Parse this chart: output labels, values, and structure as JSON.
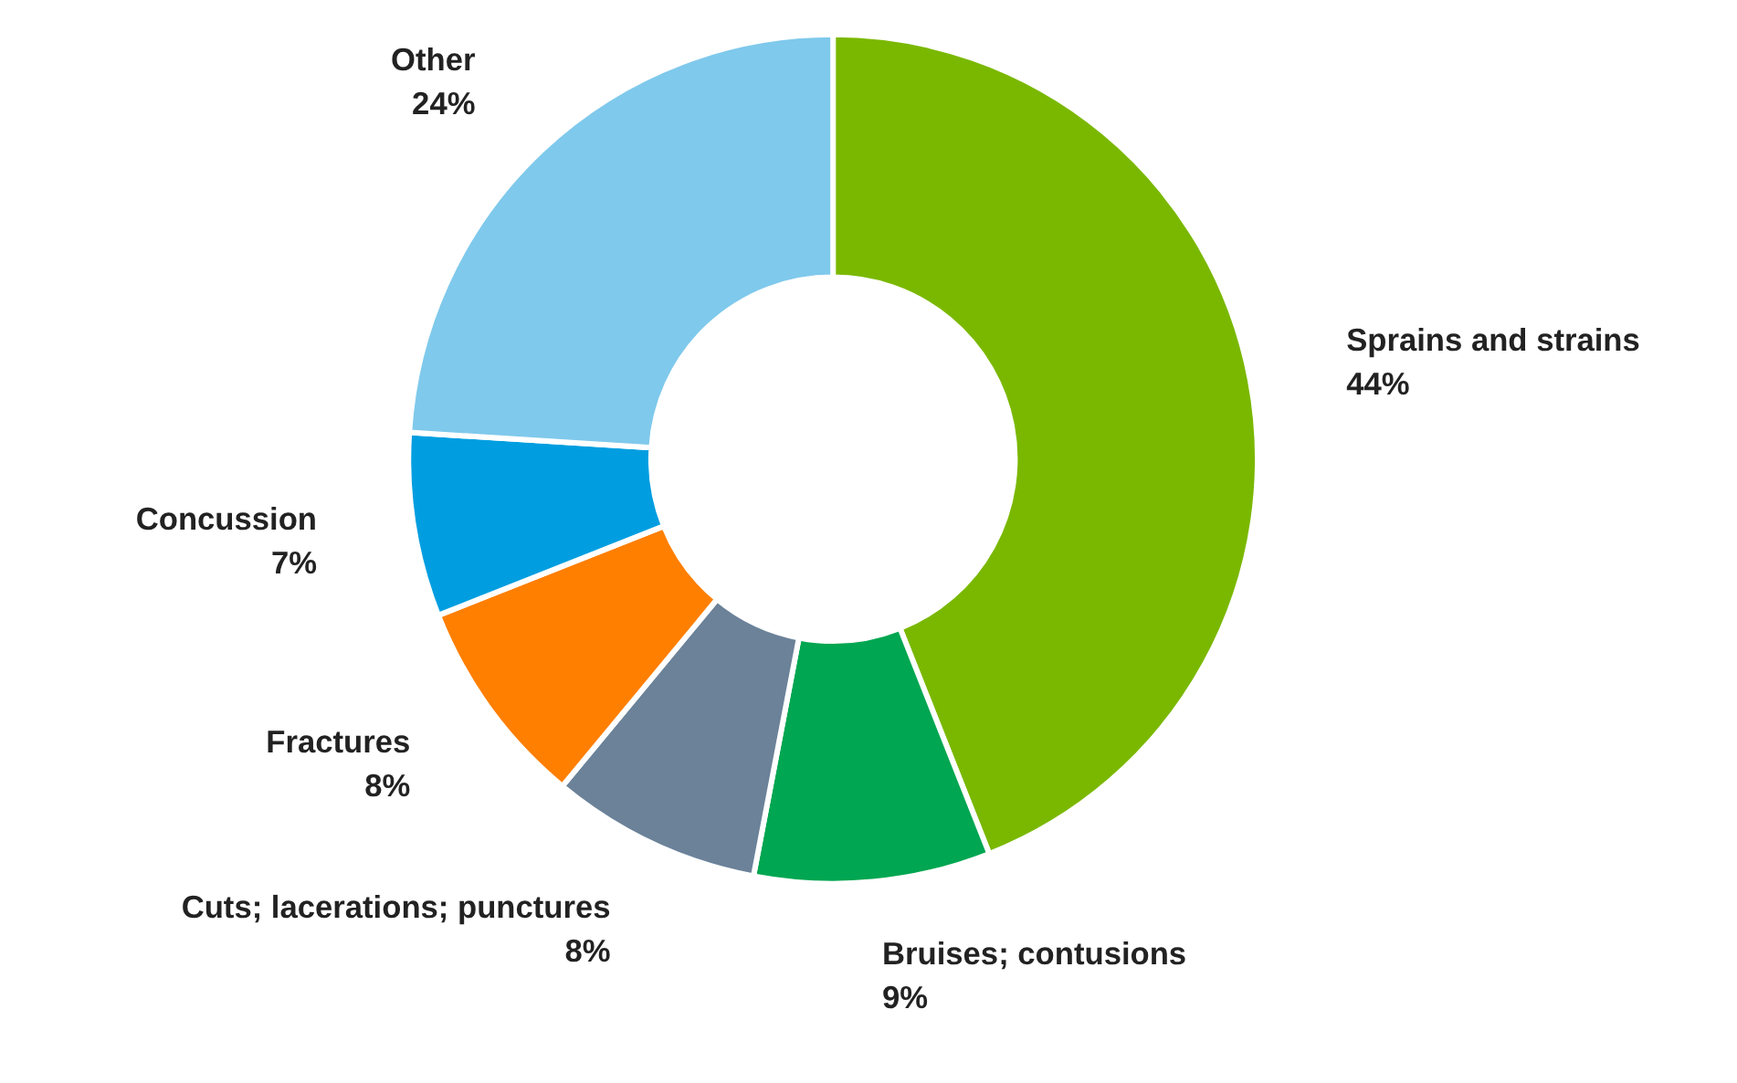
{
  "chart_data": {
    "type": "donut",
    "categories": [
      "Sprains and strains",
      "Bruises; contusions",
      "Cuts; lacerations; punctures",
      "Fractures",
      "Concussion",
      "Other"
    ],
    "values": [
      44,
      9,
      8,
      8,
      7,
      24
    ],
    "value_labels": [
      "44%",
      "9%",
      "8%",
      "8%",
      "7%",
      "24%"
    ],
    "colors": [
      "#7ab800",
      "#00a651",
      "#6b8299",
      "#ff7f00",
      "#009ee0",
      "#7fc9ec"
    ]
  }
}
